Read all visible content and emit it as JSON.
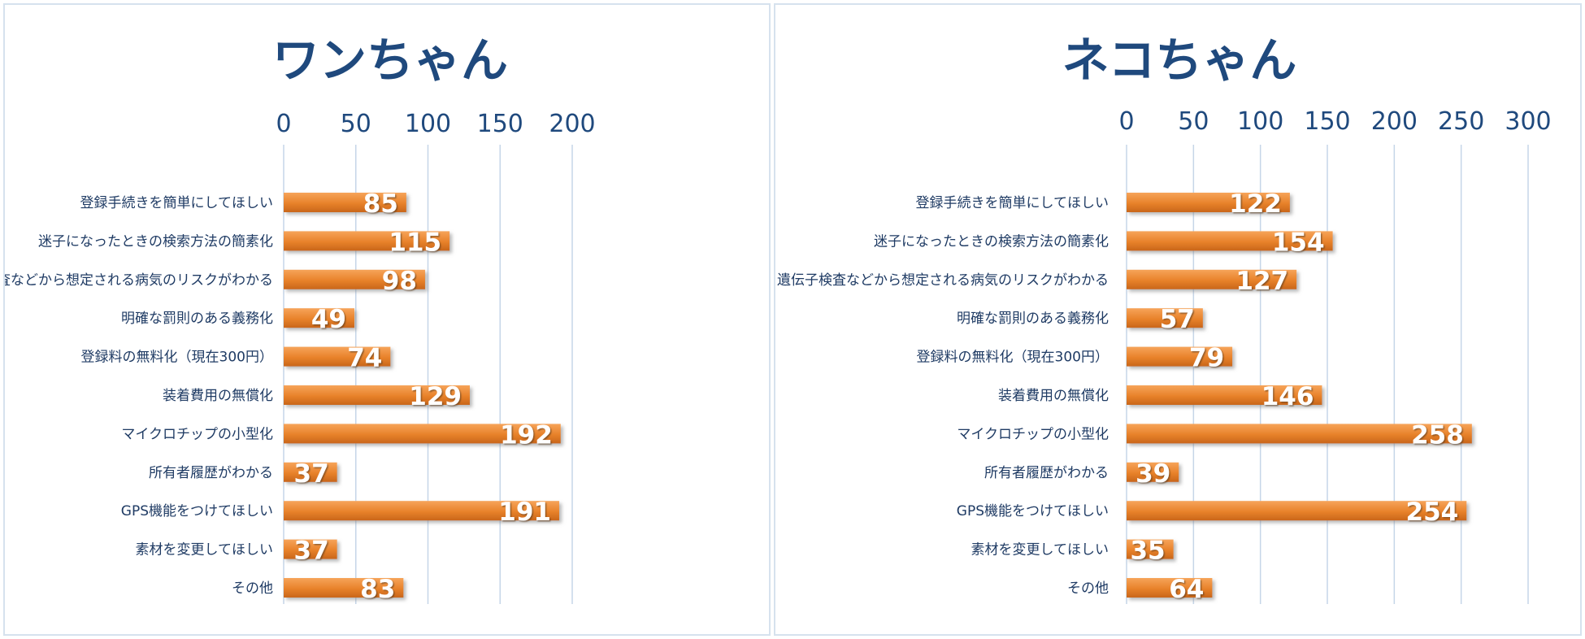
{
  "chart_data": [
    {
      "type": "bar",
      "orientation": "horizontal",
      "title": "ワンちゃん",
      "xlim": [
        0,
        200
      ],
      "ticks": [
        0,
        50,
        100,
        150,
        200
      ],
      "axis_position": "top",
      "grid": true,
      "bar_color": "#e8822a",
      "categories": [
        "登録手続きを簡単にしてほしい",
        "迷子になったときの検索方法の簡素化",
        "遺伝子検査などから想定される病気のリスクがわかる",
        "明確な罰則のある義務化",
        "登録料の無料化（現在300円）",
        "装着費用の無償化",
        "マイクロチップの小型化",
        "所有者履歴がわかる",
        "GPS機能をつけてほしい",
        "素材を変更してほしい",
        "その他"
      ],
      "values": [
        85,
        115,
        98,
        49,
        74,
        129,
        192,
        37,
        191,
        37,
        83
      ]
    },
    {
      "type": "bar",
      "orientation": "horizontal",
      "title": "ネコちゃん",
      "xlim": [
        0,
        300
      ],
      "ticks": [
        0,
        50,
        100,
        150,
        200,
        250,
        300
      ],
      "axis_position": "top",
      "grid": true,
      "bar_color": "#e8822a",
      "categories": [
        "登録手続きを簡単にしてほしい",
        "迷子になったときの検索方法の簡素化",
        "遺伝子検査などから想定される病気のリスクがわかる",
        "明確な罰則のある義務化",
        "登録料の無料化（現在300円）",
        "装着費用の無償化",
        "マイクロチップの小型化",
        "所有者履歴がわかる",
        "GPS機能をつけてほしい",
        "素材を変更してほしい",
        "その他"
      ],
      "values": [
        122,
        154,
        127,
        57,
        79,
        146,
        258,
        39,
        254,
        35,
        64
      ]
    }
  ]
}
